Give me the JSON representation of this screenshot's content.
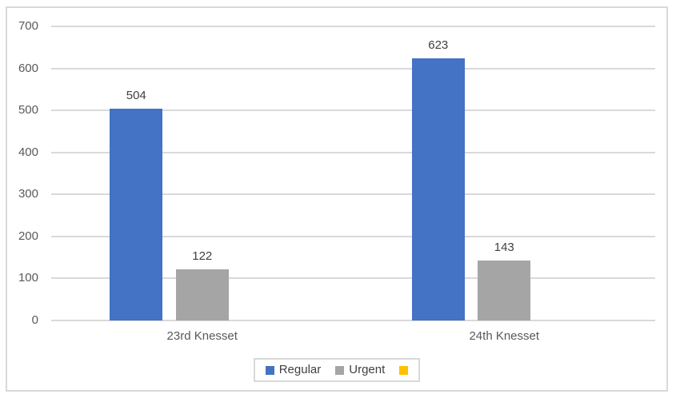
{
  "chart_data": {
    "type": "bar",
    "categories": [
      "23rd Knesset",
      "24th Knesset"
    ],
    "series": [
      {
        "name": "Regular",
        "values": [
          504,
          623
        ],
        "color": "#4472C4"
      },
      {
        "name": "Urgent",
        "values": [
          122,
          143
        ],
        "color": "#A5A5A5"
      },
      {
        "name": "",
        "values": [
          null,
          null
        ],
        "color": "#FFC000"
      }
    ],
    "title": "",
    "xlabel": "",
    "ylabel": "",
    "ylim": [
      0,
      700
    ],
    "yticks": [
      0,
      100,
      200,
      300,
      400,
      500,
      600,
      700
    ],
    "grid": true,
    "legend_position": "bottom",
    "data_labels": true
  },
  "legend": {
    "items": [
      {
        "label": "Regular",
        "color": "#4472C4"
      },
      {
        "label": "Urgent",
        "color": "#A5A5A5"
      },
      {
        "label": "",
        "color": "#FFC000"
      }
    ]
  },
  "colors": {
    "background": "#FFFFFF",
    "frame_border": "#D9D9D9",
    "gridline": "#D9D9D9",
    "axis_text": "#595959",
    "data_label_text": "#404040"
  }
}
